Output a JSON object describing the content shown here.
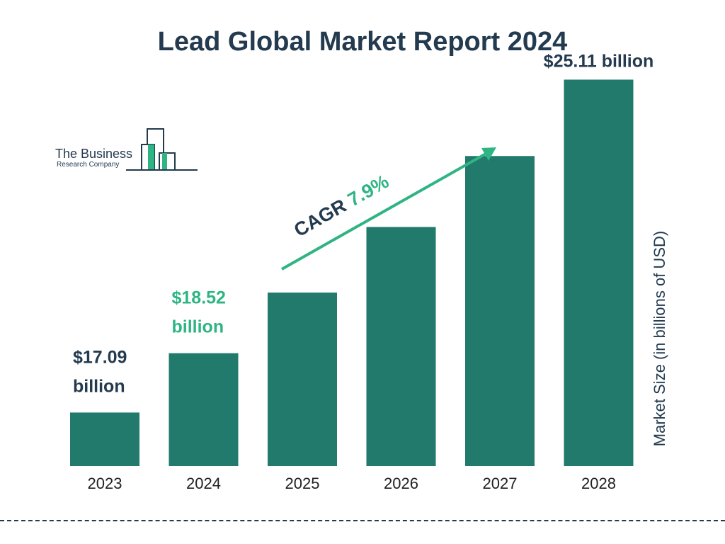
{
  "title": "Lead Global Market Report 2024",
  "logo": {
    "name": "The Business",
    "subtitle": "Research Company"
  },
  "colors": {
    "bar": "#217a6c",
    "accent": "#2fb484",
    "text": "#233a4f"
  },
  "chart_data": {
    "type": "bar",
    "categories": [
      "2023",
      "2024",
      "2025",
      "2026",
      "2027",
      "2028"
    ],
    "values": [
      17.09,
      18.52,
      19.98,
      21.56,
      23.27,
      25.11
    ],
    "ylabel": "Market Size (in billions of USD)",
    "data_labels": [
      {
        "index": 0,
        "lines": [
          "$17.09",
          "billion"
        ],
        "highlight": false
      },
      {
        "index": 1,
        "lines": [
          "$18.52",
          "billion"
        ],
        "highlight": true
      },
      {
        "index": 5,
        "lines": [
          "$25.11 billion"
        ],
        "highlight": false
      }
    ],
    "annotation": {
      "prefix": "CAGR",
      "value": "7.9%"
    },
    "grid": false,
    "legend": "none"
  }
}
